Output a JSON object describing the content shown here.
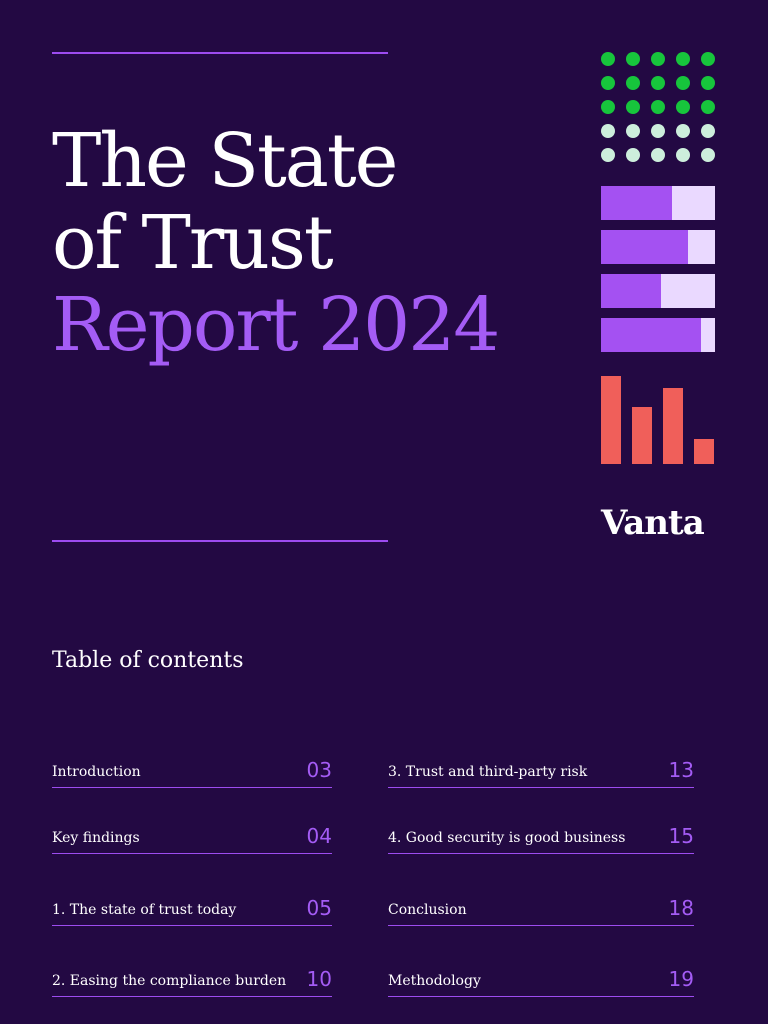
{
  "cover": {
    "title_line1": "The State",
    "title_line2": "of Trust",
    "title_line3": "Report 2024",
    "logo_text": "Vanta"
  },
  "graphic": {
    "dot_rows": [
      {
        "color": "#17c53c"
      },
      {
        "color": "#17c53c"
      },
      {
        "color": "#17c53c"
      },
      {
        "color": "#cdeedc"
      },
      {
        "color": "#cdeedc"
      }
    ],
    "dots_per_row": 5,
    "hbar_fill_fractions": [
      0.62,
      0.76,
      0.53,
      0.88
    ],
    "vbar_heights_relative": [
      1.0,
      0.65,
      0.86,
      0.28
    ]
  },
  "toc": {
    "heading": "Table of contents",
    "left": [
      {
        "label": "Introduction",
        "page": "03"
      },
      {
        "label": "Key findings",
        "page": "04"
      },
      {
        "label": "1. The state of trust today",
        "page": "05"
      },
      {
        "label": "2. Easing the compliance burden",
        "page": "10"
      }
    ],
    "right": [
      {
        "label": "3. Trust and third-party risk",
        "page": "13"
      },
      {
        "label": "4. Good security is good business",
        "page": "15"
      },
      {
        "label": "Conclusion",
        "page": "18"
      },
      {
        "label": "Methodology",
        "page": "19"
      }
    ]
  },
  "colors": {
    "background": "#230943",
    "accent_purple": "#a45cf5",
    "rule": "#9d4cf0",
    "green": "#17c53c",
    "mint": "#cdeedc",
    "bar_purple": "#a451f2",
    "bar_light": "#ead9ff",
    "coral": "#f05f5a"
  }
}
